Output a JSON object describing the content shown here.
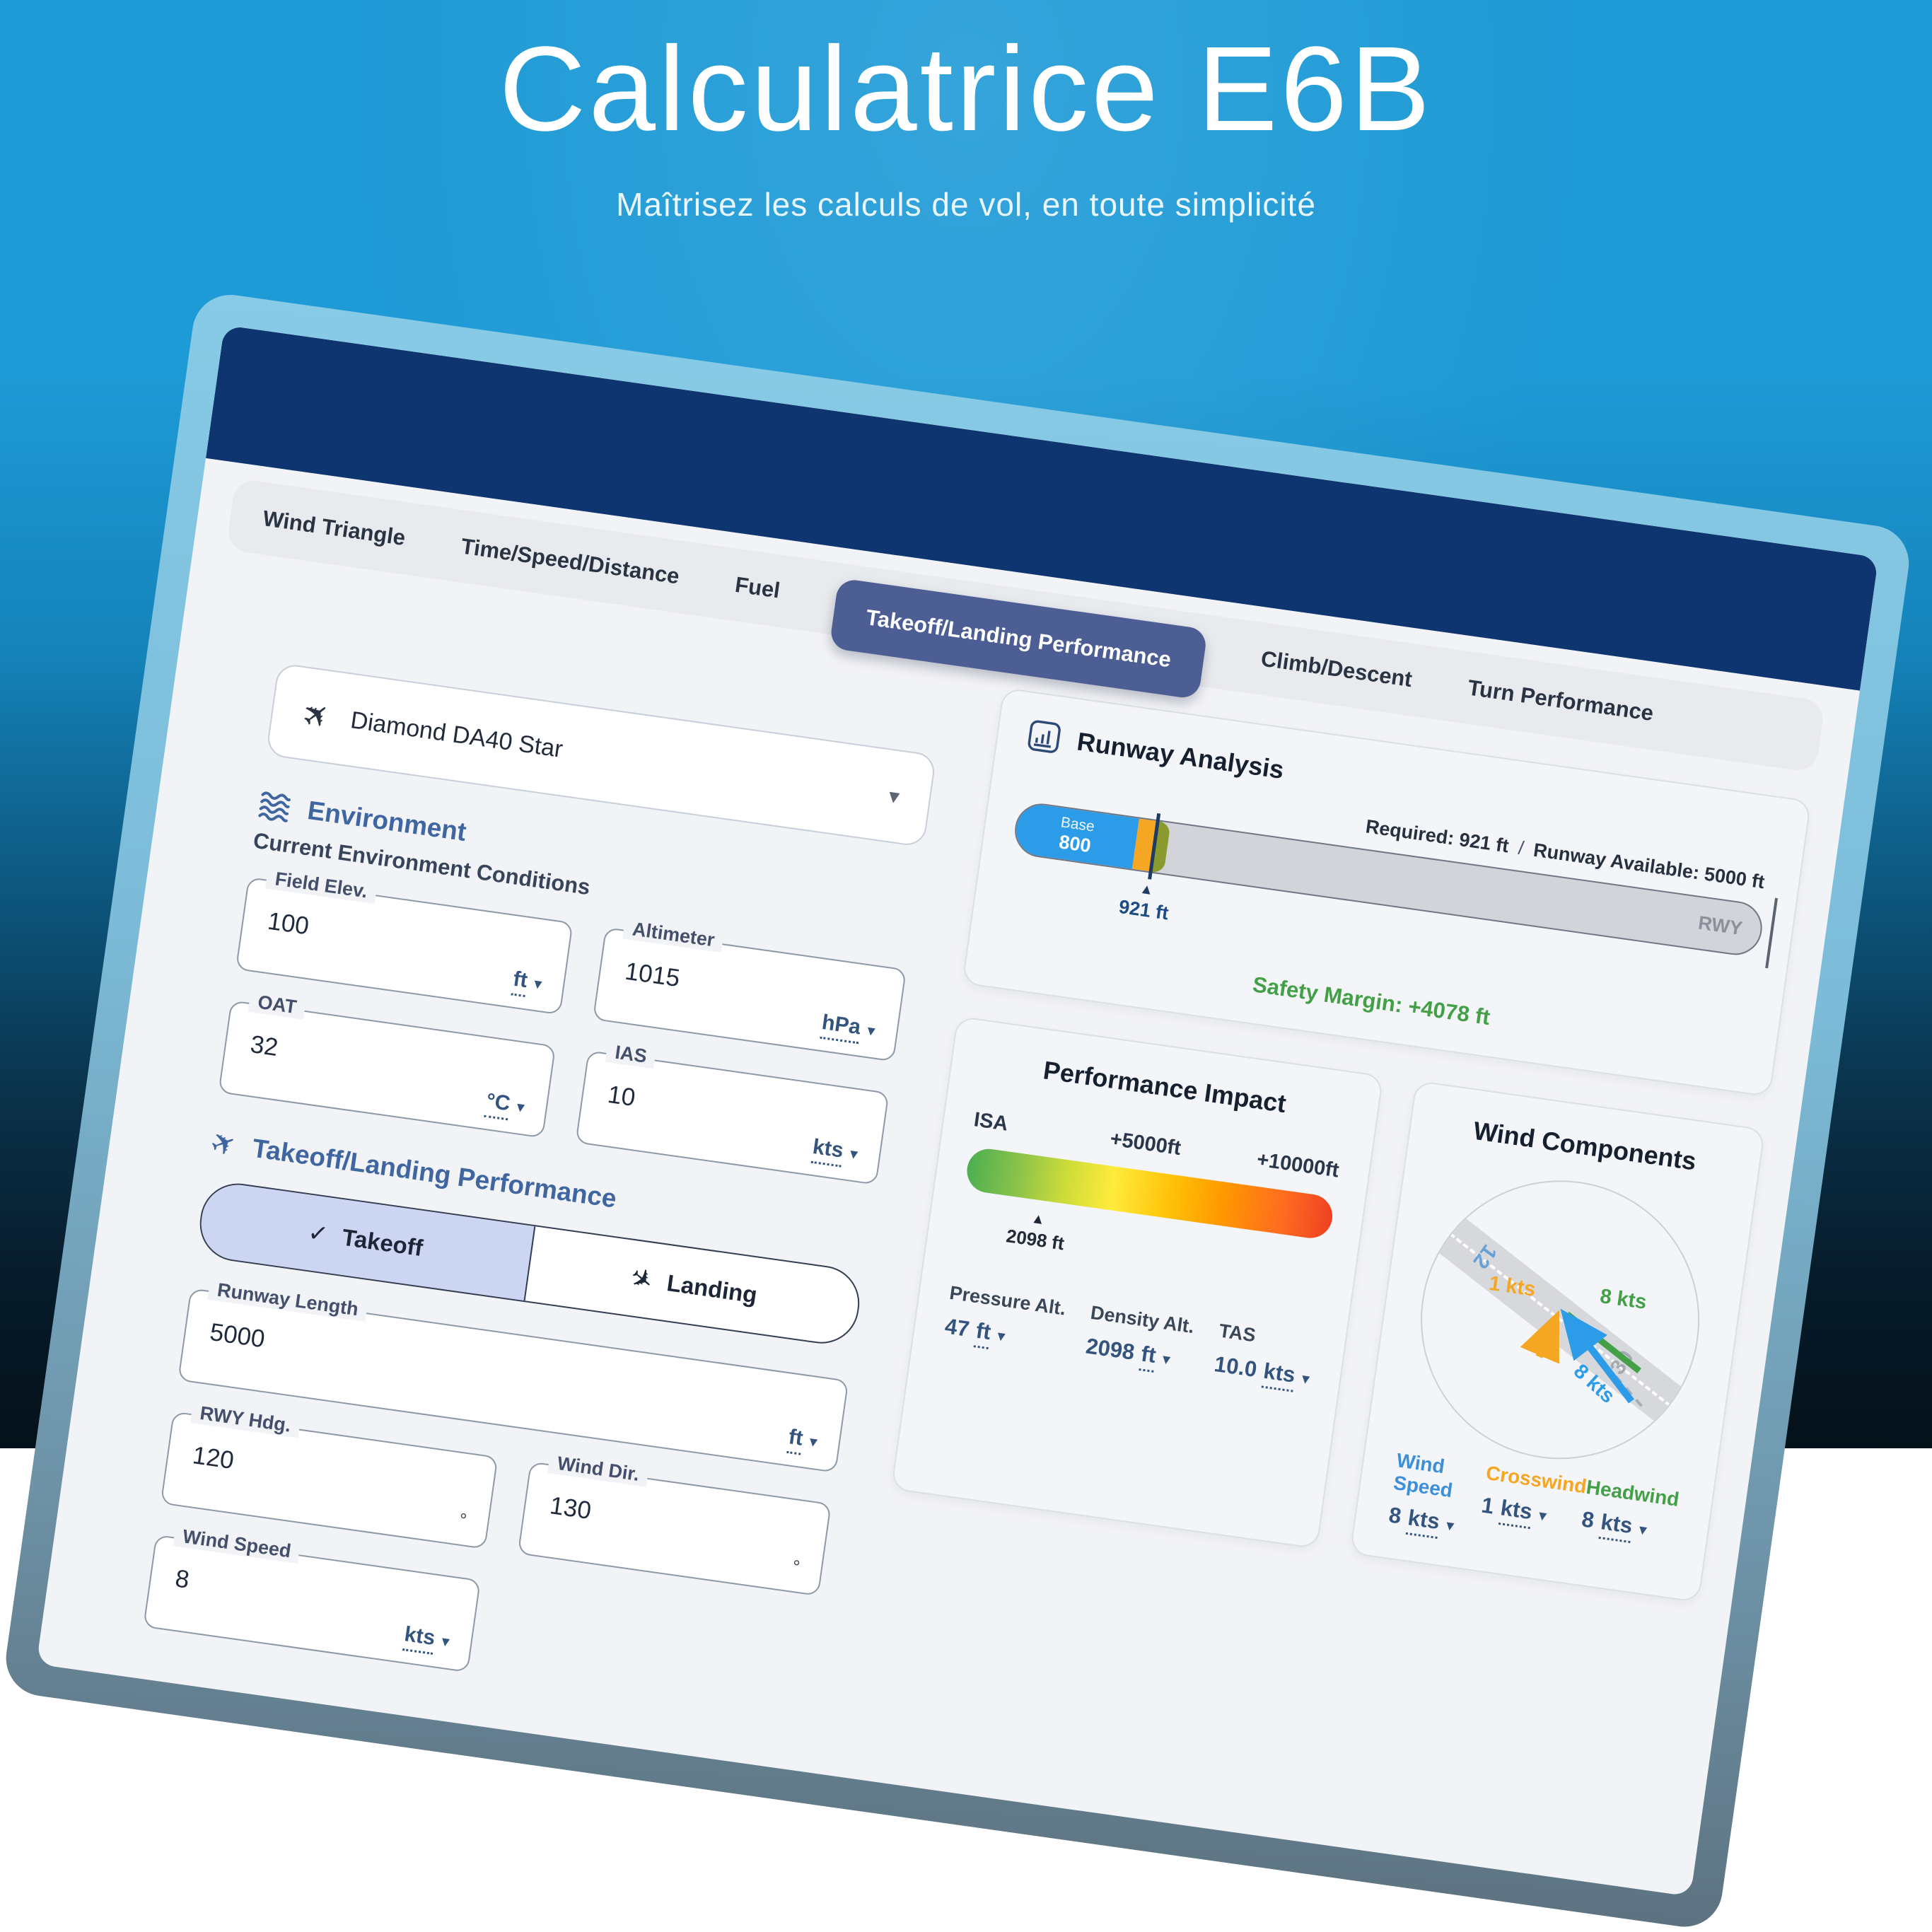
{
  "hero": {
    "title": "Calculatrice E6B",
    "subtitle": "Maîtrisez les calculs de vol, en toute simplicité"
  },
  "tabs": [
    {
      "label": "Wind Triangle",
      "active": false
    },
    {
      "label": "Time/Speed/Distance",
      "active": false
    },
    {
      "label": "Fuel",
      "active": false
    },
    {
      "label": "Takeoff/Landing Performance",
      "active": true
    },
    {
      "label": "Climb/Descent",
      "active": false
    },
    {
      "label": "Turn Performance",
      "active": false
    }
  ],
  "aircraft": {
    "name": "Diamond DA40 Star"
  },
  "environment": {
    "section_title": "Environment",
    "subtitle": "Current Environment Conditions",
    "fields": [
      {
        "label": "Field Elev.",
        "value": "100",
        "unit": "ft"
      },
      {
        "label": "Altimeter",
        "value": "1015",
        "unit": "hPa"
      },
      {
        "label": "OAT",
        "value": "32",
        "unit": "°C"
      },
      {
        "label": "IAS",
        "value": "10",
        "unit": "kts"
      }
    ]
  },
  "takeoff_landing": {
    "section_title": "Takeoff/Landing Performance",
    "segments": [
      {
        "label": "Takeoff",
        "selected": true
      },
      {
        "label": "Landing",
        "selected": false
      }
    ],
    "fields": [
      {
        "label": "Runway Length",
        "value": "5000",
        "unit": "ft"
      },
      {
        "label": "RWY Hdg.",
        "value": "120",
        "unit": "°"
      },
      {
        "label": "Wind Dir.",
        "value": "130",
        "unit": "°"
      },
      {
        "label": "Wind Speed",
        "value": "8",
        "unit": "kts"
      }
    ]
  },
  "runway_analysis": {
    "title": "Runway Analysis",
    "base_label": "Base",
    "base_value": "800",
    "base_ft": 800,
    "required_ft": 921,
    "available_ft": 5000,
    "required_text": "Required: 921 ft",
    "available_text": "Runway Available: 5000 ft",
    "marker_label": "921 ft",
    "rwy_label": "RWY",
    "safety_margin": "Safety Margin: +4078 ft"
  },
  "performance_impact": {
    "title": "Performance Impact",
    "scale_left": "ISA",
    "scale_mid": "+5000ft",
    "scale_right": "+10000ft",
    "scale_max_ft": 10000,
    "density_alt_marker_ft": 2098,
    "marker_label": "2098 ft",
    "stats": [
      {
        "label": "Pressure Alt.",
        "value": "47",
        "unit": "ft"
      },
      {
        "label": "Density Alt.",
        "value": "2098",
        "unit": "ft"
      },
      {
        "label": "TAS",
        "value": "10.0",
        "unit": "kts"
      }
    ]
  },
  "wind_components": {
    "title": "Wind Components",
    "runway_number_near": "12",
    "runway_number_far": "30",
    "crosswind_vector_label": "1 kts",
    "headwind_vector_label": "8 kts",
    "wind_vector_label": "8 kts",
    "stats": [
      {
        "label": "Wind Speed",
        "value": "8",
        "unit": "kts"
      },
      {
        "label": "Crosswind",
        "value": "1",
        "unit": "kts"
      },
      {
        "label": "Headwind",
        "value": "8",
        "unit": "kts"
      }
    ]
  },
  "icons": {
    "plane": "✈",
    "check": "✓",
    "chevron_down": "▾",
    "marker_up": "▲",
    "degree_note": "plane-icon, check-icon, chevron-down-icon, marker-up-icon"
  },
  "colors": {
    "background_top": "#1e9ad6",
    "background_bottom": "#05111a",
    "bezel": "#87cbe6",
    "header_navy": "#0e356f",
    "active_tab": "#4c5e93",
    "accent_blue": "#2d9ce8",
    "accent_orange": "#f5a623",
    "accent_olive": "#8a9a2e",
    "accent_green": "#43a047",
    "unit_steel_blue": "#33547e"
  }
}
